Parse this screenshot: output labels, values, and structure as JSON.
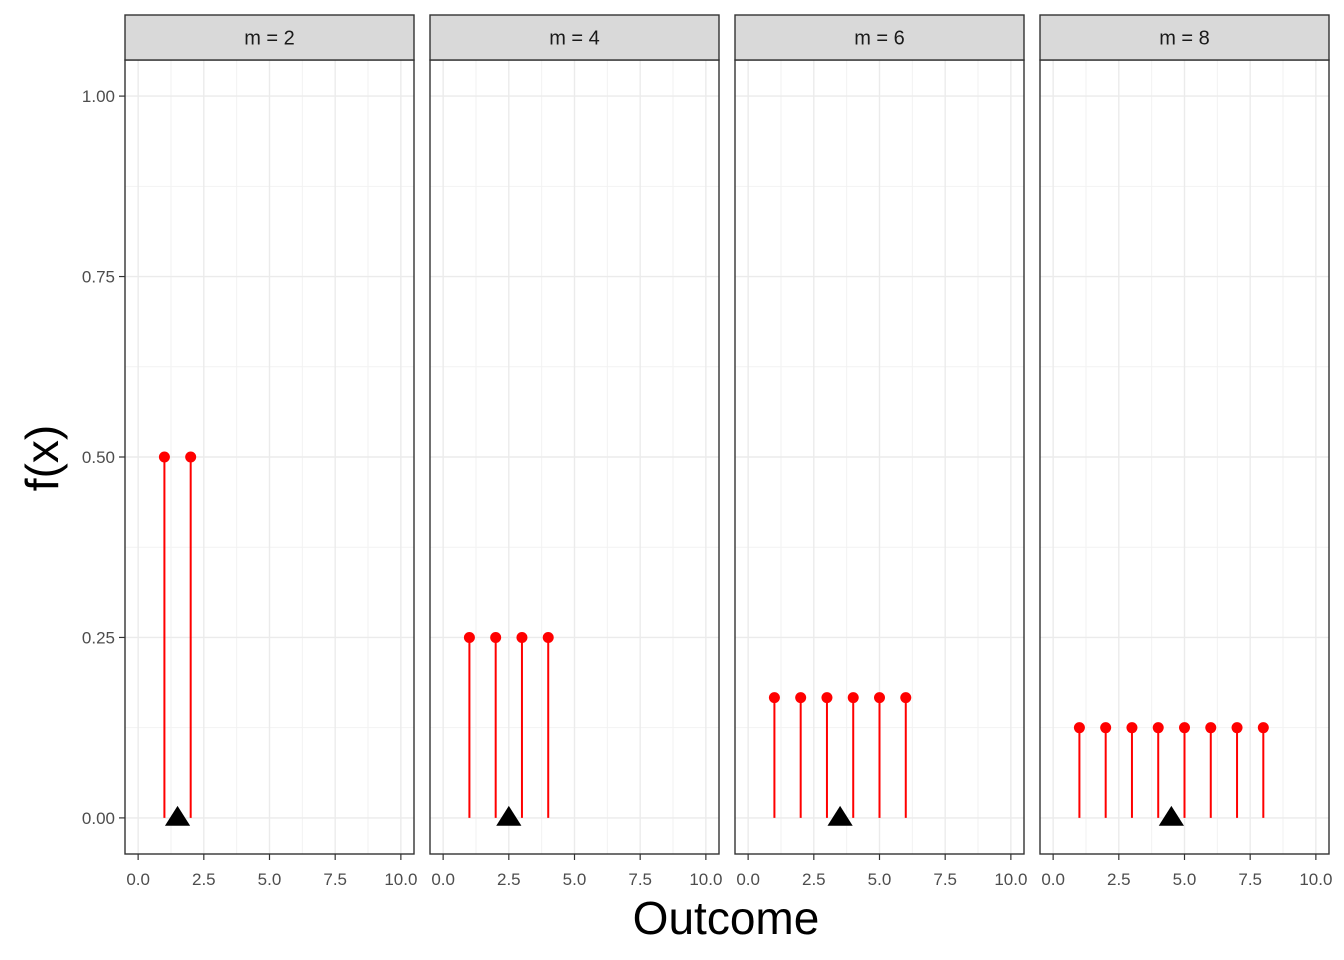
{
  "chart_data": {
    "type": "scatter",
    "geometry": "lollipop",
    "xlabel": "Outcome",
    "ylabel": "f(x)",
    "xlim": [
      -0.5,
      10.5
    ],
    "ylim": [
      -0.05,
      1.05
    ],
    "x_ticks": [
      "0.0",
      "2.5",
      "5.0",
      "7.5",
      "10.0"
    ],
    "x_tick_values": [
      0,
      2.5,
      5,
      7.5,
      10
    ],
    "y_ticks": [
      "0.00",
      "0.25",
      "0.50",
      "0.75",
      "1.00"
    ],
    "y_tick_values": [
      0,
      0.25,
      0.5,
      0.75,
      1
    ],
    "grid": true,
    "colors": {
      "stem": "#ff0000",
      "point": "#ff0000",
      "mean_marker": "#000000",
      "strip_fill": "#d9d9d9"
    },
    "facets": [
      {
        "label": "m = 2",
        "x": [
          1,
          2
        ],
        "y": [
          0.5,
          0.5
        ],
        "mean": 1.5
      },
      {
        "label": "m = 4",
        "x": [
          1,
          2,
          3,
          4
        ],
        "y": [
          0.25,
          0.25,
          0.25,
          0.25
        ],
        "mean": 2.5
      },
      {
        "label": "m = 6",
        "x": [
          1,
          2,
          3,
          4,
          5,
          6
        ],
        "y": [
          0.1667,
          0.1667,
          0.1667,
          0.1667,
          0.1667,
          0.1667
        ],
        "mean": 3.5
      },
      {
        "label": "m = 8",
        "x": [
          1,
          2,
          3,
          4,
          5,
          6,
          7,
          8
        ],
        "y": [
          0.125,
          0.125,
          0.125,
          0.125,
          0.125,
          0.125,
          0.125,
          0.125
        ],
        "mean": 4.5
      }
    ]
  }
}
